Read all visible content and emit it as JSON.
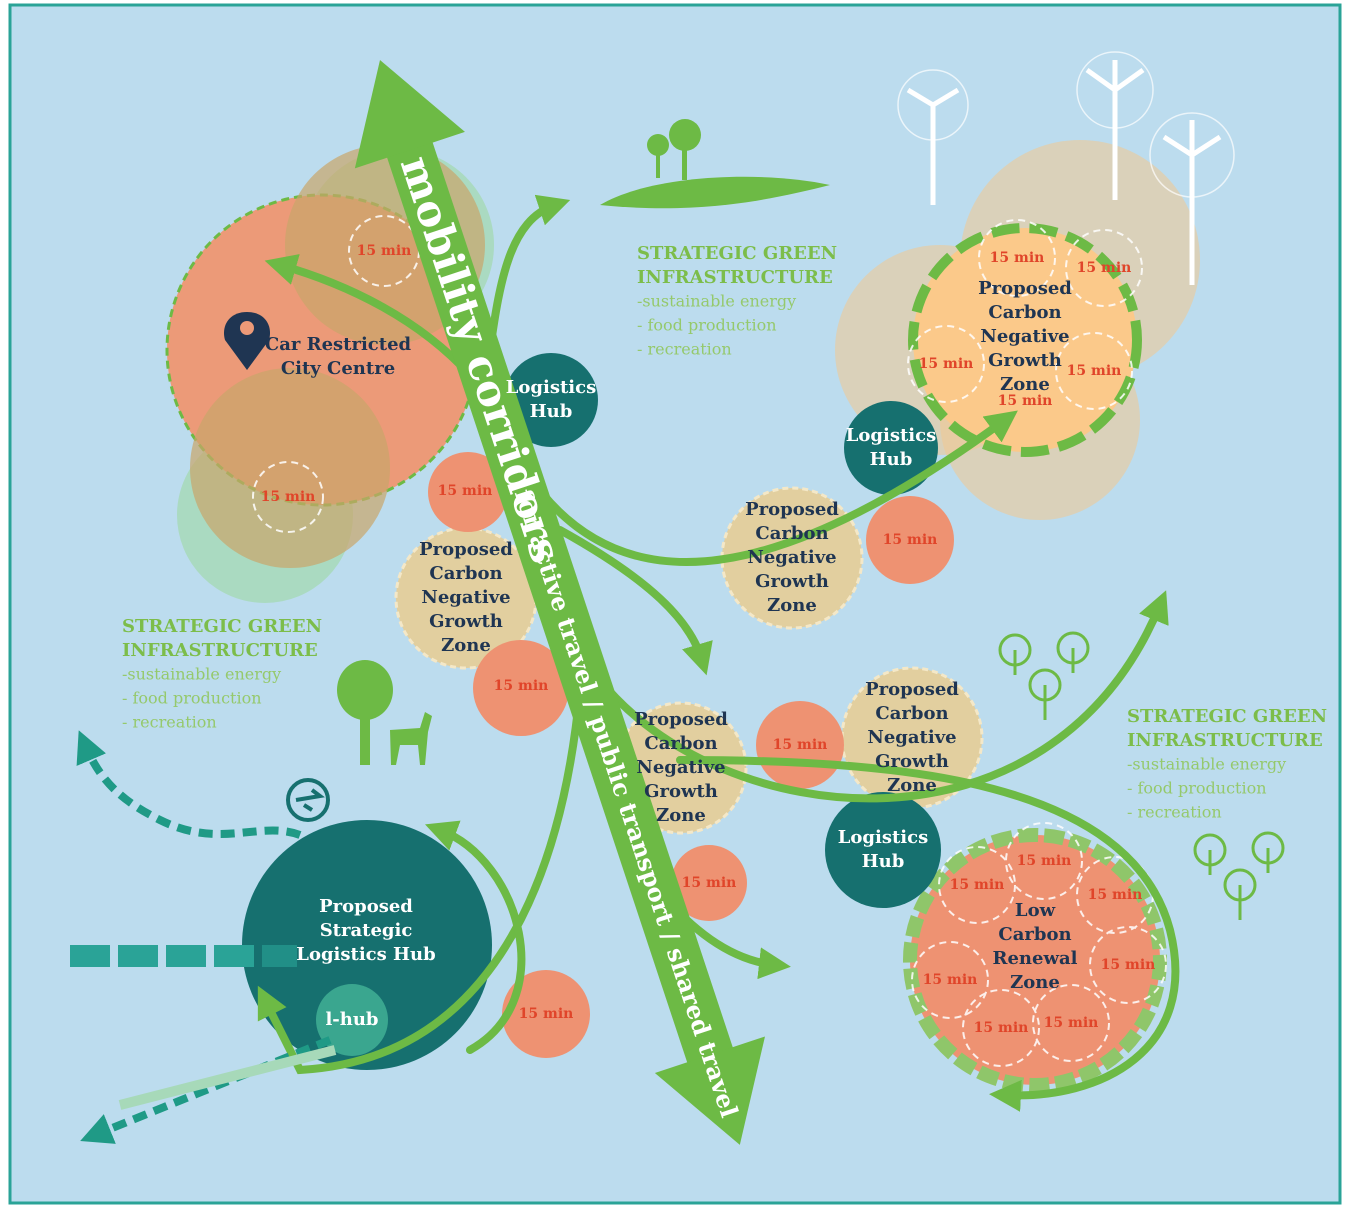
{
  "corridor": {
    "title": "mobility corridors",
    "subtitle": "for active travel / public transport / shared travel"
  },
  "green_infrastructure": [
    {
      "title": [
        "STRATEGIC GREEN",
        "INFRASTRUCTURE"
      ],
      "items": [
        "-sustainable energy",
        "- food production",
        "- recreation"
      ]
    },
    {
      "title": [
        "STRATEGIC GREEN",
        "INFRASTRUCTURE"
      ],
      "items": [
        "-sustainable energy",
        "- food production",
        "- recreation"
      ]
    },
    {
      "title": [
        "STRATEGIC GREEN",
        "INFRASTRUCTURE"
      ],
      "items": [
        "-sustainable energy",
        "- food production",
        "- recreation"
      ]
    }
  ],
  "zones": [
    {
      "lines": [
        "Car Restricted",
        "City Centre"
      ]
    },
    {
      "lines": [
        "Proposed",
        "Carbon",
        "Negative",
        "Growth",
        "Zone"
      ]
    },
    {
      "lines": [
        "Proposed",
        "Carbon",
        "Negative",
        "Growth",
        "Zone"
      ]
    },
    {
      "lines": [
        "Proposed",
        "Carbon",
        "Negative",
        "Growth",
        "Zone"
      ]
    },
    {
      "lines": [
        "Proposed",
        "Carbon",
        "Negative",
        "Growth",
        "Zone"
      ]
    },
    {
      "lines": [
        "Proposed",
        "Carbon",
        "Negative",
        "Growth",
        "Zone"
      ]
    },
    {
      "lines": [
        "Low",
        "Carbon",
        "Renewal",
        "Zone"
      ]
    },
    {
      "lines": [
        "Proposed",
        "Strategic",
        "Logistics Hub"
      ]
    }
  ],
  "logistics_hubs": [
    {
      "lines": [
        "Logistics",
        "Hub"
      ]
    },
    {
      "lines": [
        "Logistics",
        "Hub"
      ]
    },
    {
      "lines": [
        "Logistics",
        "Hub"
      ]
    }
  ],
  "l_hub": "l-hub",
  "time_labels": [
    "15 min",
    "15 min",
    "15 min",
    "15 min",
    "15 min",
    "15 min",
    "15 min",
    "15 min",
    "15 min",
    "15 min",
    "15 min",
    "15 min",
    "15 min",
    "15 min",
    "15 min",
    "15 min",
    "15 min",
    "15 min",
    "15 min",
    "15 min"
  ]
}
